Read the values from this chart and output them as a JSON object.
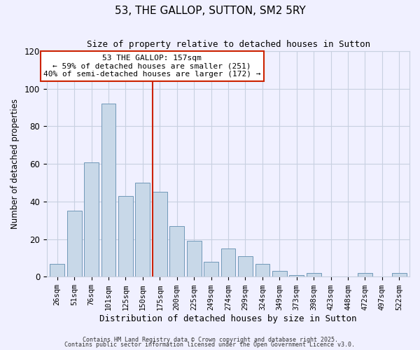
{
  "title": "53, THE GALLOP, SUTTON, SM2 5RY",
  "subtitle": "Size of property relative to detached houses in Sutton",
  "xlabel": "Distribution of detached houses by size in Sutton",
  "ylabel": "Number of detached properties",
  "bar_labels": [
    "26sqm",
    "51sqm",
    "76sqm",
    "101sqm",
    "125sqm",
    "150sqm",
    "175sqm",
    "200sqm",
    "225sqm",
    "249sqm",
    "274sqm",
    "299sqm",
    "324sqm",
    "349sqm",
    "373sqm",
    "398sqm",
    "423sqm",
    "448sqm",
    "472sqm",
    "497sqm",
    "522sqm"
  ],
  "bar_values": [
    7,
    35,
    61,
    92,
    43,
    50,
    45,
    27,
    19,
    8,
    15,
    11,
    7,
    3,
    1,
    2,
    0,
    0,
    2,
    0,
    2
  ],
  "bar_color": "#c8d8e8",
  "bar_edge_color": "#7098b8",
  "vline_x": 5.57,
  "vline_color": "#cc2200",
  "annotation_title": "53 THE GALLOP: 157sqm",
  "annotation_line1": "← 59% of detached houses are smaller (251)",
  "annotation_line2": "40% of semi-detached houses are larger (172) →",
  "annotation_box_facecolor": "#ffffff",
  "annotation_box_edgecolor": "#cc2200",
  "ylim": [
    0,
    120
  ],
  "yticks": [
    0,
    20,
    40,
    60,
    80,
    100,
    120
  ],
  "background_color": "#f0f0ff",
  "grid_color": "#c8d0e0",
  "footer1": "Contains HM Land Registry data © Crown copyright and database right 2025.",
  "footer2": "Contains public sector information licensed under the Open Government Licence v3.0."
}
